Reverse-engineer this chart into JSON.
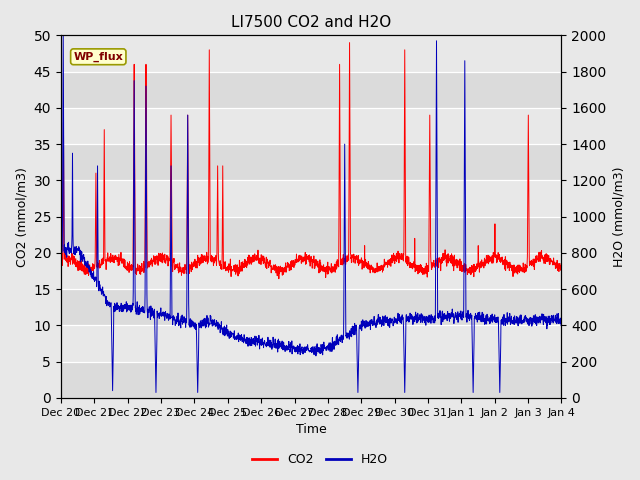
{
  "title": "LI7500 CO2 and H2O",
  "xlabel": "Time",
  "ylabel_left": "CO2 (mmol/m3)",
  "ylabel_right": "H2O (mmol/m3)",
  "co2_ylim": [
    0,
    50
  ],
  "h2o_ylim": [
    0,
    2000
  ],
  "co2_yticks": [
    0,
    5,
    10,
    15,
    20,
    25,
    30,
    35,
    40,
    45,
    50
  ],
  "h2o_yticks": [
    0,
    200,
    400,
    600,
    800,
    1000,
    1200,
    1400,
    1600,
    1800,
    2000
  ],
  "background_color": "#e8e8e8",
  "co2_color": "#ff0000",
  "h2o_color": "#0000bb",
  "annotation_text": "WP_flux",
  "x_tick_labels": [
    "Dec 20",
    "Dec 21",
    "Dec 22",
    "Dec 23",
    "Dec 24",
    "Dec 25",
    "Dec 26",
    "Dec 27",
    "Dec 28",
    "Dec 29",
    "Dec 30",
    "Dec 31",
    "Jan 1",
    "Jan 2",
    "Jan 3",
    "Jan 4"
  ],
  "num_days": 15,
  "title_fontsize": 11,
  "label_fontsize": 9,
  "tick_fontsize": 8
}
